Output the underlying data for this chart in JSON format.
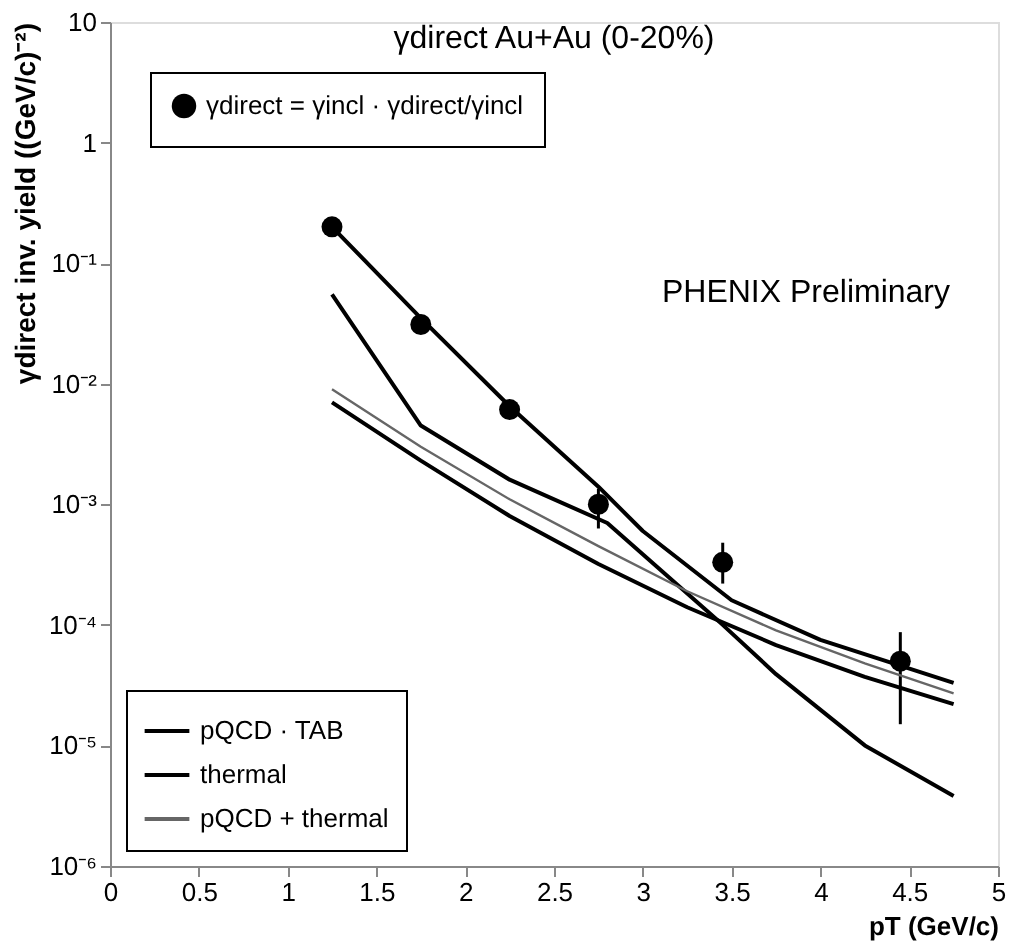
{
  "chart_data": {
    "type": "line",
    "title": "γdirect Au+Au (0-20%)",
    "xlabel": "pT (GeV/c)",
    "ylabel": "γdirect inv. yield ((GeV/c)⁻²)",
    "annotations": [
      "PHENIX Preliminary"
    ],
    "log": "y",
    "xlim": [
      0,
      5
    ],
    "xticks": [
      0,
      0.5,
      1,
      1.5,
      2,
      2.5,
      3,
      3.5,
      4,
      4.5,
      5
    ],
    "ylim": [
      1e-06,
      10
    ],
    "yticks": [
      {
        "value": 1e-06,
        "label": "10⁻⁶"
      },
      {
        "value": 1e-05,
        "label": "10⁻⁵"
      },
      {
        "value": 0.0001,
        "label": "10⁻⁴"
      },
      {
        "value": 0.001,
        "label": "10⁻³"
      },
      {
        "value": 0.01,
        "label": "10⁻²"
      },
      {
        "value": 0.1,
        "label": "10⁻¹"
      },
      1,
      10
    ],
    "grid": false,
    "legend": "bottom left",
    "series": [
      {
        "name": "γdirect = γincl · γdirect/γincl",
        "type": "scatter",
        "marker": "circle",
        "color": "#000000",
        "x": [
          1.25,
          1.75,
          2.25,
          2.75,
          3.45,
          4.45
        ],
        "values": [
          0.2,
          0.031,
          0.0061,
          0.001,
          0.00033,
          5e-05
        ],
        "errors": [
          null,
          null,
          null,
          [
            0.00063,
            0.00135
          ],
          [
            0.00022,
            0.00048
          ],
          [
            1.5e-05,
            8.7e-05
          ]
        ]
      },
      {
        "color": "#000000",
        "x": [
          1.25,
          1.75,
          2.25,
          2.75,
          3.0,
          3.5,
          4.0,
          4.75
        ],
        "values": [
          0.2,
          0.035,
          0.0065,
          0.0014,
          0.0006,
          0.00016,
          7.5e-05,
          3.3e-05
        ]
      },
      {
        "name": "pQCD · TAB",
        "color": "#000000",
        "x": [
          1.25,
          1.75,
          2.25,
          2.75,
          3.25,
          3.75,
          4.25,
          4.75
        ],
        "values": [
          0.007,
          0.0023,
          0.0008,
          0.00032,
          0.00014,
          6.8e-05,
          3.7e-05,
          2.2e-05
        ]
      },
      {
        "name": "thermal",
        "color": "#000000",
        "x": [
          1.25,
          1.75,
          2.25,
          2.8,
          3.45,
          3.75,
          4.25,
          4.75
        ],
        "values": [
          0.055,
          0.0045,
          0.0016,
          0.0007,
          0.0001,
          3.9e-05,
          1e-05,
          3.8e-06
        ]
      },
      {
        "name": "pQCD + thermal",
        "color": "#666666",
        "x": [
          1.25,
          1.75,
          2.25,
          2.75,
          3.25,
          3.75,
          4.25,
          4.75
        ],
        "values": [
          0.009,
          0.003,
          0.0011,
          0.00045,
          0.00019,
          9e-05,
          4.8e-05,
          2.7e-05
        ]
      }
    ]
  }
}
